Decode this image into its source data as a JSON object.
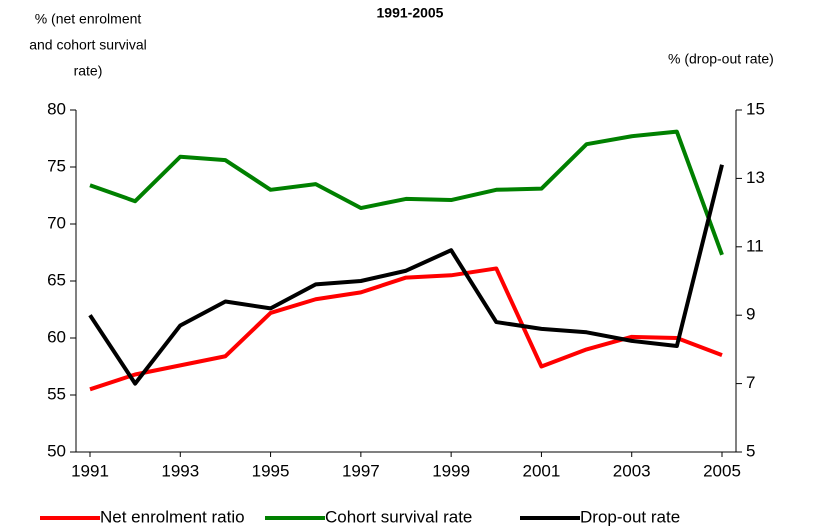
{
  "chart_data": {
    "type": "line",
    "title": "1991-2005",
    "y_label_lines": [
      "%  (net enrolment",
      "and cohort survival",
      "rate)"
    ],
    "y2_label": "% (drop-out rate)",
    "x": [
      1991,
      1992,
      1993,
      1994,
      1995,
      1996,
      1997,
      1998,
      1999,
      2000,
      2001,
      2002,
      2003,
      2004,
      2005
    ],
    "xlim": [
      1990.69,
      2005.31
    ],
    "xticks": [
      1991,
      1993,
      1995,
      1997,
      1999,
      2001,
      2003,
      2005
    ],
    "ylim": [
      50,
      80
    ],
    "yticks": [
      50,
      55,
      60,
      65,
      70,
      75,
      80
    ],
    "y2lim": [
      5,
      15
    ],
    "y2ticks": [
      5,
      7,
      9,
      11,
      13,
      15
    ],
    "grid": false,
    "legend": "bottom",
    "series": [
      {
        "name": "Net enrolment ratio",
        "color": "#ff0000",
        "values": [
          55.5,
          56.8,
          57.6,
          58.4,
          62.2,
          63.4,
          64.0,
          65.3,
          65.5,
          66.1,
          57.5,
          59.0,
          60.1,
          60.0,
          58.5
        ]
      },
      {
        "name": "Cohort survival rate",
        "color": "#008000",
        "values": [
          73.4,
          72.0,
          75.9,
          75.6,
          73.0,
          73.5,
          71.4,
          72.2,
          72.1,
          73.0,
          73.1,
          77.0,
          77.7,
          78.1,
          67.3
        ]
      },
      {
        "name": "Drop-out rate",
        "color": "#000000",
        "axis": "y2",
        "values": [
          9.0,
          7.0,
          8.7,
          9.4,
          9.2,
          9.9,
          10.0,
          10.3,
          10.9,
          8.8,
          8.6,
          8.5,
          8.25,
          8.1,
          13.4
        ]
      }
    ]
  }
}
